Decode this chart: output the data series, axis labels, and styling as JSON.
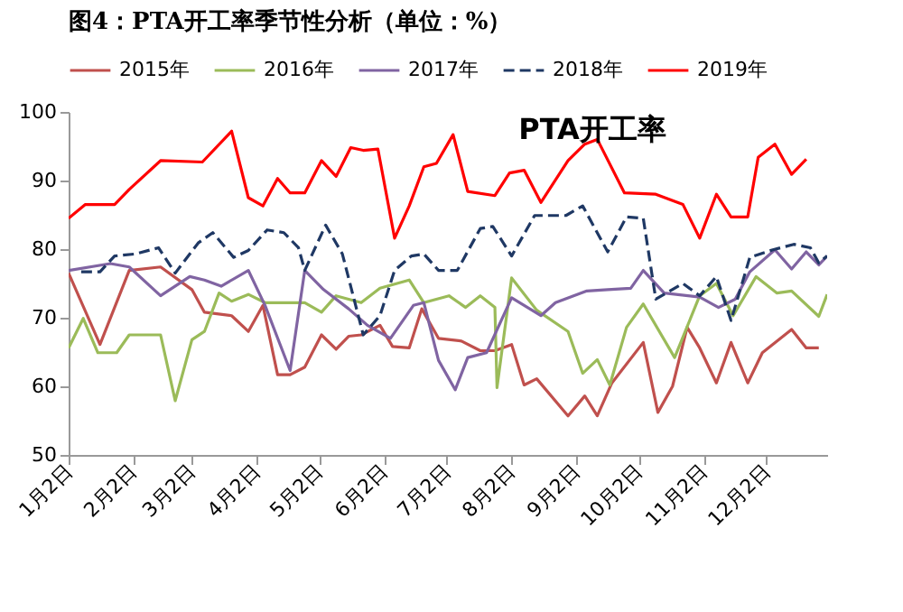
{
  "chart_data": {
    "type": "line",
    "title": "图4：PTA开工率季节性分析（单位：%）",
    "xlim": [
      "--01-02",
      "--12-31"
    ],
    "xticks": [
      {
        "value": "--01-02",
        "label": "1月2日"
      },
      {
        "value": "--02-02",
        "label": "2月2日"
      },
      {
        "value": "--03-02",
        "label": "3月2日"
      },
      {
        "value": "--04-02",
        "label": "4月2日"
      },
      {
        "value": "--05-02",
        "label": "5月2日"
      },
      {
        "value": "--06-02",
        "label": "6月2日"
      },
      {
        "value": "--07-02",
        "label": "7月2日"
      },
      {
        "value": "--08-02",
        "label": "8月2日"
      },
      {
        "value": "--09-02",
        "label": "9月2日"
      },
      {
        "value": "--10-02",
        "label": "10月2日"
      },
      {
        "value": "--11-02",
        "label": "11月2日"
      },
      {
        "value": "--12-02",
        "label": "12月2日"
      }
    ],
    "ylim": [
      50,
      100
    ],
    "yticks": [
      50,
      60,
      70,
      80,
      90,
      100
    ],
    "grid": false,
    "legend": "top",
    "marker": "none",
    "annotations": [
      "PTA开工率"
    ],
    "series": [
      {
        "name": "2015年",
        "color": "#c0504d",
        "x": [
          "--01-02",
          "--01-17",
          "--01-31",
          "--02-15",
          "--03-02",
          "--03-08",
          "--03-21",
          "--03-29",
          "--04-05",
          "--04-12",
          "--04-18",
          "--04-25",
          "--05-03",
          "--05-10",
          "--05-16",
          "--05-22",
          "--05-31",
          "--06-06",
          "--06-14",
          "--06-20",
          "--06-28",
          "--07-09",
          "--07-18",
          "--07-25",
          "--08-02",
          "--08-08",
          "--08-14",
          "--08-29",
          "--09-06",
          "--09-12",
          "--09-19",
          "--10-04",
          "--10-11",
          "--10-18",
          "--10-25",
          "--10-31",
          "--11-08",
          "--11-15",
          "--11-23",
          "--11-30",
          "--12-14",
          "--12-21",
          "--12-27"
        ],
        "values": [
          76.5,
          66.1,
          76.9,
          77.4,
          74.1,
          70.8,
          70.3,
          68,
          71.8,
          61.7,
          61.7,
          62.8,
          67.5,
          65.4,
          67.3,
          67.5,
          68.9,
          65.8,
          65.6,
          71.3,
          67,
          66.6,
          65.2,
          65.2,
          66.1,
          60.2,
          61.1,
          55.7,
          58.6,
          55.7,
          60.5,
          66.4,
          56.2,
          60,
          68.6,
          65.6,
          60.5,
          66.4,
          60.5,
          64.9,
          68.3,
          65.6,
          65.6
        ]
      },
      {
        "name": "2016年",
        "color": "#9bbb59",
        "x": [
          "--01-02",
          "--01-09",
          "--01-16",
          "--01-25",
          "--01-31",
          "--02-15",
          "--02-22",
          "--03-02",
          "--03-08",
          "--03-15",
          "--03-21",
          "--03-29",
          "--04-06",
          "--04-25",
          "--05-03",
          "--05-10",
          "--05-22",
          "--05-31",
          "--06-14",
          "--06-21",
          "--07-03",
          "--07-11",
          "--07-18",
          "--07-25",
          "--07-26",
          "--08-02",
          "--08-14",
          "--08-29",
          "--09-05",
          "--09-12",
          "--09-18",
          "--09-26",
          "--10-04",
          "--10-19",
          "--10-31",
          "--11-08",
          "--11-16",
          "--11-27",
          "--12-07",
          "--12-14",
          "--12-27",
          "--12-31"
        ],
        "values": [
          65.6,
          69.9,
          64.9,
          64.9,
          67.5,
          67.5,
          57.9,
          66.8,
          68,
          73.6,
          72.4,
          73.4,
          72.2,
          72.2,
          70.8,
          73.2,
          72.2,
          74.3,
          75.5,
          72.2,
          73.2,
          71.5,
          73.2,
          71.5,
          59.8,
          75.8,
          71.1,
          68,
          61.9,
          63.9,
          60.2,
          68.6,
          72,
          64.2,
          73.2,
          75,
          70.3,
          76,
          73.6,
          73.9,
          70.2,
          73.4
        ]
      },
      {
        "name": "2017年",
        "color": "#8064a2",
        "x": [
          "--01-02",
          "--01-22",
          "--01-31",
          "--02-15",
          "--03-01",
          "--03-08",
          "--03-16",
          "--03-29",
          "--04-06",
          "--04-18",
          "--04-25",
          "--05-04",
          "--05-16",
          "--05-25",
          "--06-05",
          "--06-16",
          "--06-21",
          "--06-28",
          "--07-06",
          "--07-12",
          "--07-21",
          "--08-02",
          "--08-16",
          "--08-23",
          "--09-07",
          "--09-17",
          "--09-28",
          "--10-04",
          "--10-14",
          "--10-31",
          "--11-09",
          "--11-17",
          "--11-24",
          "--12-06",
          "--12-14",
          "--12-21",
          "--12-27",
          "--12-31"
        ],
        "values": [
          76.9,
          77.9,
          77.4,
          73.2,
          76,
          75.5,
          74.6,
          76.9,
          71.8,
          62.3,
          76.9,
          74.1,
          71.3,
          68.9,
          67,
          71.8,
          72.2,
          63.8,
          59.5,
          64.2,
          64.9,
          72.9,
          70.3,
          72.2,
          73.9,
          74.1,
          74.3,
          76.9,
          73.6,
          73,
          71.5,
          72.7,
          76.7,
          79.9,
          77.1,
          79.6,
          77.7,
          79
        ]
      },
      {
        "name": "2018年",
        "color": "#1f3864",
        "line_style": "dashed",
        "x": [
          "--01-08",
          "--01-17",
          "--01-24",
          "--02-03",
          "--02-14",
          "--02-22",
          "--03-05",
          "--03-12",
          "--03-22",
          "--03-29",
          "--04-07",
          "--04-15",
          "--04-22",
          "--04-25",
          "--05-05",
          "--05-13",
          "--05-23",
          "--05-31",
          "--06-07",
          "--06-15",
          "--06-21",
          "--06-28",
          "--07-07",
          "--07-18",
          "--07-24",
          "--08-02",
          "--08-13",
          "--08-28",
          "--09-05",
          "--09-17",
          "--09-26",
          "--10-04",
          "--10-10",
          "--10-23",
          "--10-31",
          "--11-08",
          "--11-15",
          "--11-24",
          "--12-05",
          "--12-15",
          "--12-23",
          "--12-27",
          "--12-31"
        ],
        "values": [
          76.7,
          76.7,
          79,
          79.3,
          80.2,
          76.5,
          80.9,
          82.4,
          78.8,
          79.8,
          82.8,
          82.4,
          80.2,
          76.9,
          83.5,
          79.3,
          67.5,
          70.3,
          76.9,
          79,
          79.3,
          76.9,
          76.9,
          83,
          83.3,
          79,
          84.9,
          84.9,
          86.3,
          79.6,
          84.7,
          84.5,
          72.7,
          75,
          73.2,
          76,
          69.6,
          78.8,
          79.9,
          80.7,
          80.2,
          78,
          79
        ]
      },
      {
        "name": "2019年",
        "color": "#ff0000",
        "x": [
          "--01-02",
          "--01-10",
          "--01-24",
          "--01-31",
          "--02-15",
          "--03-07",
          "--03-21",
          "--03-29",
          "--04-05",
          "--04-12",
          "--04-18",
          "--04-25",
          "--05-03",
          "--05-10",
          "--05-17",
          "--05-23",
          "--05-30",
          "--06-07",
          "--06-14",
          "--06-21",
          "--06-27",
          "--07-05",
          "--07-12",
          "--07-25",
          "--08-01",
          "--08-08",
          "--08-16",
          "--08-29",
          "--09-06",
          "--09-12",
          "--09-25",
          "--10-10",
          "--10-23",
          "--10-31",
          "--11-08",
          "--11-15",
          "--11-23",
          "--11-28",
          "--12-06",
          "--12-14",
          "--12-21"
        ],
        "values": [
          84.5,
          86.5,
          86.5,
          88.7,
          92.9,
          92.7,
          97.2,
          87.5,
          86.3,
          90.3,
          88.2,
          88.2,
          92.9,
          90.6,
          94.8,
          94.4,
          94.6,
          81.6,
          86.3,
          92,
          92.5,
          96.7,
          88.4,
          87.8,
          91.1,
          91.5,
          86.8,
          92.9,
          95.3,
          96,
          88.2,
          88,
          86.5,
          81.6,
          88,
          84.7,
          84.7,
          93.4,
          95.3,
          90.9,
          93.1
        ]
      }
    ]
  }
}
